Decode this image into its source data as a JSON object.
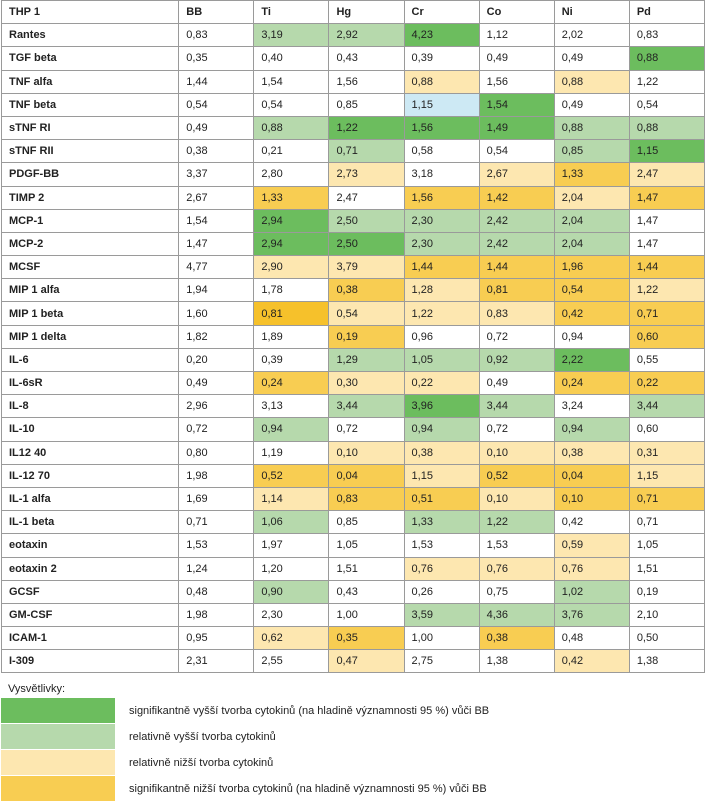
{
  "table": {
    "headers": [
      "THP 1",
      "BB",
      "Ti",
      "Hg",
      "Cr",
      "Co",
      "Ni",
      "Pd"
    ],
    "rows": [
      {
        "label": "Rantes",
        "values": [
          "0,83",
          "3,19",
          "2,92",
          "4,23",
          "1,12",
          "2,02",
          "0,83"
        ],
        "levels": [
          "none",
          "rel-high",
          "rel-high",
          "sig-high",
          "none",
          "none",
          "none"
        ]
      },
      {
        "label": "TGF beta",
        "values": [
          "0,35",
          "0,40",
          "0,43",
          "0,39",
          "0,49",
          "0,49",
          "0,88"
        ],
        "levels": [
          "none",
          "none",
          "none",
          "none",
          "none",
          "none",
          "sig-high"
        ]
      },
      {
        "label": "TNF alfa",
        "values": [
          "1,44",
          "1,54",
          "1,56",
          "0,88",
          "1,56",
          "0,88",
          "1,22"
        ],
        "levels": [
          "none",
          "none",
          "none",
          "rel-low",
          "none",
          "rel-low",
          "none"
        ]
      },
      {
        "label": "TNF beta",
        "values": [
          "0,54",
          "0,54",
          "0,85",
          "1,15",
          "1,54",
          "0,49",
          "0,54"
        ],
        "levels": [
          "none",
          "none",
          "none",
          "blue",
          "sig-high",
          "none",
          "none"
        ]
      },
      {
        "label": "sTNF RI",
        "values": [
          "0,49",
          "0,88",
          "1,22",
          "1,56",
          "1,49",
          "0,88",
          "0,88"
        ],
        "levels": [
          "none",
          "rel-high",
          "sig-high",
          "sig-high",
          "sig-high",
          "rel-high",
          "rel-high"
        ]
      },
      {
        "label": "sTNF RII",
        "values": [
          "0,38",
          "0,21",
          "0,71",
          "0,58",
          "0,54",
          "0,85",
          "1,15"
        ],
        "levels": [
          "none",
          "none",
          "rel-high",
          "none",
          "none",
          "rel-high",
          "sig-high"
        ]
      },
      {
        "label": "PDGF-BB",
        "values": [
          "3,37",
          "2,80",
          "2,73",
          "3,18",
          "2,67",
          "1,33",
          "2,47"
        ],
        "levels": [
          "none",
          "none",
          "rel-low",
          "none",
          "rel-low",
          "sig-low",
          "rel-low"
        ]
      },
      {
        "label": "TIMP 2",
        "values": [
          "2,67",
          "1,33",
          "2,47",
          "1,56",
          "1,42",
          "2,04",
          "1,47"
        ],
        "levels": [
          "none",
          "sig-low",
          "none",
          "sig-low",
          "sig-low",
          "rel-low",
          "sig-low"
        ]
      },
      {
        "label": "MCP-1",
        "values": [
          "1,54",
          "2,94",
          "2,50",
          "2,30",
          "2,42",
          "2,04",
          "1,47"
        ],
        "levels": [
          "none",
          "sig-high",
          "rel-high",
          "rel-high",
          "rel-high",
          "rel-high",
          "none"
        ]
      },
      {
        "label": "MCP-2",
        "values": [
          "1,47",
          "2,94",
          "2,50",
          "2,30",
          "2,42",
          "2,04",
          "1,47"
        ],
        "levels": [
          "none",
          "sig-high",
          "sig-high",
          "rel-high",
          "rel-high",
          "rel-high",
          "none"
        ]
      },
      {
        "label": "MCSF",
        "values": [
          "4,77",
          "2,90",
          "3,79",
          "1,44",
          "1,44",
          "1,96",
          "1,44"
        ],
        "levels": [
          "none",
          "rel-low",
          "rel-low",
          "sig-low",
          "sig-low",
          "sig-low",
          "sig-low"
        ]
      },
      {
        "label": "MIP 1 alfa",
        "values": [
          "1,94",
          "1,78",
          "0,38",
          "1,28",
          "0,81",
          "0,54",
          "1,22"
        ],
        "levels": [
          "none",
          "none",
          "sig-low",
          "rel-low",
          "sig-low",
          "sig-low",
          "rel-low"
        ]
      },
      {
        "label": "MIP 1 beta",
        "values": [
          "1,60",
          "0,81",
          "0,54",
          "1,22",
          "0,83",
          "0,42",
          "0,71"
        ],
        "levels": [
          "none",
          "gold",
          "rel-low",
          "rel-low",
          "rel-low",
          "sig-low",
          "sig-low"
        ]
      },
      {
        "label": "MIP 1 delta",
        "values": [
          "1,82",
          "1,89",
          "0,19",
          "0,96",
          "0,72",
          "0,94",
          "0,60"
        ],
        "levels": [
          "none",
          "none",
          "sig-low",
          "none",
          "none",
          "none",
          "sig-low"
        ]
      },
      {
        "label": "IL-6",
        "values": [
          "0,20",
          "0,39",
          "1,29",
          "1,05",
          "0,92",
          "2,22",
          "0,55"
        ],
        "levels": [
          "none",
          "none",
          "rel-high",
          "rel-high",
          "rel-high",
          "sig-high",
          "none"
        ]
      },
      {
        "label": "IL-6sR",
        "values": [
          "0,49",
          "0,24",
          "0,30",
          "0,22",
          "0,49",
          "0,24",
          "0,22"
        ],
        "levels": [
          "none",
          "sig-low",
          "rel-low",
          "rel-low",
          "none",
          "sig-low",
          "sig-low"
        ]
      },
      {
        "label": "IL-8",
        "values": [
          "2,96",
          "3,13",
          "3,44",
          "3,96",
          "3,44",
          "3,24",
          "3,44"
        ],
        "levels": [
          "none",
          "none",
          "rel-high",
          "sig-high",
          "rel-high",
          "none",
          "rel-high"
        ]
      },
      {
        "label": "IL-10",
        "values": [
          "0,72",
          "0,94",
          "0,72",
          "0,94",
          "0,72",
          "0,94",
          "0,60"
        ],
        "levels": [
          "none",
          "rel-high",
          "none",
          "rel-high",
          "none",
          "rel-high",
          "none"
        ]
      },
      {
        "label": "IL12 40",
        "values": [
          "0,80",
          "1,19",
          "0,10",
          "0,38",
          "0,10",
          "0,38",
          "0,31"
        ],
        "levels": [
          "none",
          "none",
          "rel-low",
          "rel-low",
          "rel-low",
          "rel-low",
          "rel-low"
        ]
      },
      {
        "label": "IL-12 70",
        "values": [
          "1,98",
          "0,52",
          "0,04",
          "1,15",
          "0,52",
          "0,04",
          "1,15"
        ],
        "levels": [
          "none",
          "sig-low",
          "sig-low",
          "rel-low",
          "sig-low",
          "sig-low",
          "rel-low"
        ]
      },
      {
        "label": "IL-1 alfa",
        "values": [
          "1,69",
          "1,14",
          "0,83",
          "0,51",
          "0,10",
          "0,10",
          "0,71"
        ],
        "levels": [
          "none",
          "rel-low",
          "sig-low",
          "sig-low",
          "rel-low",
          "sig-low",
          "sig-low"
        ]
      },
      {
        "label": "IL-1 beta",
        "values": [
          "0,71",
          "1,06",
          "0,85",
          "1,33",
          "1,22",
          "0,42",
          "0,71"
        ],
        "levels": [
          "none",
          "rel-high",
          "none",
          "rel-high",
          "rel-high",
          "none",
          "none"
        ]
      },
      {
        "label": "eotaxin",
        "values": [
          "1,53",
          "1,97",
          "1,05",
          "1,53",
          "1,53",
          "0,59",
          "1,05"
        ],
        "levels": [
          "none",
          "none",
          "none",
          "none",
          "none",
          "rel-low",
          "none"
        ]
      },
      {
        "label": "eotaxin 2",
        "values": [
          "1,24",
          "1,20",
          "1,51",
          "0,76",
          "0,76",
          "0,76",
          "1,51"
        ],
        "levels": [
          "none",
          "none",
          "none",
          "rel-low",
          "rel-low",
          "rel-low",
          "none"
        ]
      },
      {
        "label": "GCSF",
        "values": [
          "0,48",
          "0,90",
          "0,43",
          "0,26",
          "0,75",
          "1,02",
          "0,19"
        ],
        "levels": [
          "none",
          "rel-high",
          "none",
          "none",
          "none",
          "rel-high",
          "none"
        ]
      },
      {
        "label": "GM-CSF",
        "values": [
          "1,98",
          "2,30",
          "1,00",
          "3,59",
          "4,36",
          "3,76",
          "2,10"
        ],
        "levels": [
          "none",
          "none",
          "none",
          "rel-high",
          "rel-high",
          "rel-high",
          "none"
        ]
      },
      {
        "label": "ICAM-1",
        "values": [
          "0,95",
          "0,62",
          "0,35",
          "1,00",
          "0,38",
          "0,48",
          "0,50"
        ],
        "levels": [
          "none",
          "rel-low",
          "sig-low",
          "none",
          "sig-low",
          "none",
          "none"
        ]
      },
      {
        "label": "I-309",
        "values": [
          "2,31",
          "2,55",
          "0,47",
          "2,75",
          "1,38",
          "0,42",
          "1,38"
        ],
        "levels": [
          "none",
          "none",
          "rel-low",
          "none",
          "none",
          "rel-low",
          "none"
        ]
      }
    ]
  },
  "legend": {
    "title": "Vysvětlivky:",
    "items": [
      {
        "level": "sig-high",
        "color": "#6cbd5e",
        "text": "signifikantně vyšší tvorba cytokinů (na hladině významnosti 95 %) vůči BB"
      },
      {
        "level": "rel-high",
        "color": "#b6d9ac",
        "text": "relativně vyšší tvorba cytokinů"
      },
      {
        "level": "rel-low",
        "color": "#fde7b0",
        "text": "relativně nižší tvorba cytokinů"
      },
      {
        "level": "sig-low",
        "color": "#f8cd52",
        "text": "signifikantně nižší tvorba cytokinů (na hladině významnosti 95 %) vůči BB"
      }
    ]
  }
}
